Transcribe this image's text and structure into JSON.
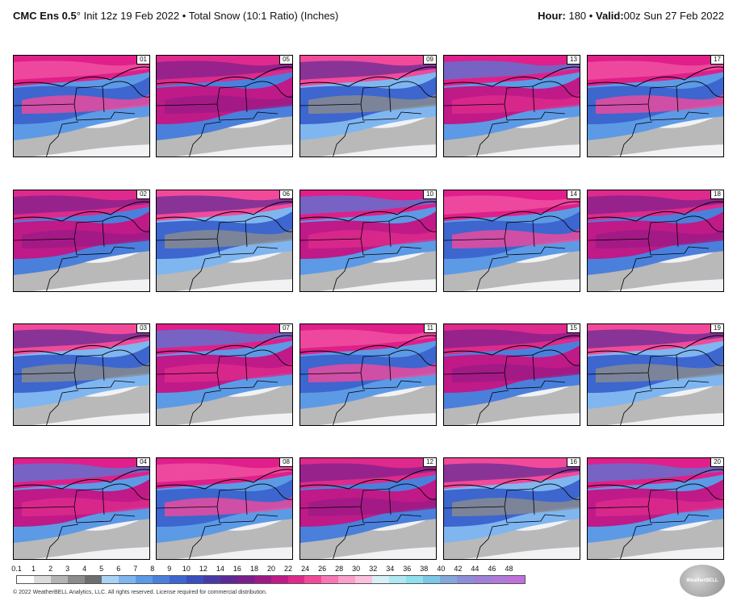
{
  "header": {
    "model": "CMC Ens 0.5",
    "degree": "°",
    "init": "Init 12z 19 Feb 2022",
    "bullet": "•",
    "product": "Total Snow (10:1 Ratio) (Inches)",
    "hour_label": "Hour:",
    "hour_value": "180",
    "valid_label": "Valid:",
    "valid_value": "00z Sun 27 Feb 2022"
  },
  "panels": [
    {
      "member": "01"
    },
    {
      "member": "05"
    },
    {
      "member": "09"
    },
    {
      "member": "13"
    },
    {
      "member": "17"
    },
    {
      "member": "02"
    },
    {
      "member": "06"
    },
    {
      "member": "10"
    },
    {
      "member": "14"
    },
    {
      "member": "18"
    },
    {
      "member": "03"
    },
    {
      "member": "07"
    },
    {
      "member": "11"
    },
    {
      "member": "15"
    },
    {
      "member": "19"
    },
    {
      "member": "04"
    },
    {
      "member": "08"
    },
    {
      "member": "12"
    },
    {
      "member": "16"
    },
    {
      "member": "20"
    }
  ],
  "colorbar": {
    "tick_labels": [
      "0.1",
      "1",
      "2",
      "3",
      "4",
      "5",
      "6",
      "7",
      "8",
      "9",
      "10",
      "12",
      "14",
      "16",
      "18",
      "20",
      "22",
      "24",
      "26",
      "28",
      "30",
      "32",
      "34",
      "36",
      "38",
      "40",
      "42",
      "44",
      "46",
      "48"
    ],
    "colors": [
      "#ffffff",
      "#dcdcdc",
      "#b4b4b4",
      "#8c8c8c",
      "#6e6e6e",
      "#a9d2f5",
      "#7fb6f0",
      "#5c9ae6",
      "#4a80dc",
      "#3d66cf",
      "#3a4fc0",
      "#4a3aa8",
      "#5c2a96",
      "#7a1f8c",
      "#9c1a86",
      "#bf1a88",
      "#de2a8c",
      "#f24a9a",
      "#f777b2",
      "#fb9fcb",
      "#fcc0de",
      "#d6f0f8",
      "#b0e8f2",
      "#8ee0ee",
      "#7cc6e8",
      "#84a8dc",
      "#8e8ed6",
      "#9e80d6",
      "#b07ad8",
      "#c070dc"
    ]
  },
  "footer": {
    "copyright": "© 2022 WeatherBELL Analytics, LLC. All rights reserved. License required for commercial distribution.",
    "logo_text": "WeatherBELL"
  }
}
